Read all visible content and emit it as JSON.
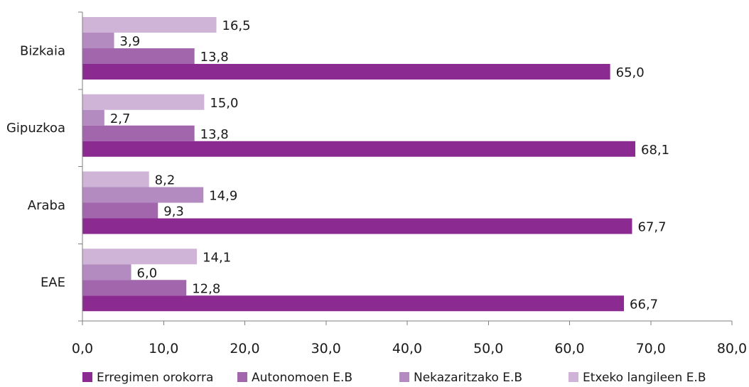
{
  "chart_data": {
    "type": "bar",
    "orientation": "horizontal",
    "categories": [
      "Bizkaia",
      "Gipuzkoa",
      "Araba",
      "EAE"
    ],
    "series": [
      {
        "name": "Erregimen orokorra",
        "values": [
          65.0,
          68.1,
          67.7,
          66.7
        ],
        "labels": [
          "65,0",
          "68,1",
          "67,7",
          "66,7"
        ],
        "color": "#8B2B91"
      },
      {
        "name": "Autonomoen E.B",
        "values": [
          13.8,
          13.8,
          9.3,
          12.8
        ],
        "labels": [
          "13,8",
          "13,8",
          "9,3",
          "12,8"
        ],
        "color": "#A166AC"
      },
      {
        "name": "Nekazaritzako E.B",
        "values": [
          3.9,
          2.7,
          14.9,
          6.0
        ],
        "labels": [
          "3,9",
          "2,7",
          "14,9",
          "6,0"
        ],
        "color": "#B48BC0"
      },
      {
        "name": "Etxeko langileen E.B",
        "values": [
          16.5,
          15.0,
          8.2,
          14.1
        ],
        "labels": [
          "16,5",
          "15,0",
          "8,2",
          "14,1"
        ],
        "color": "#CFB4D8"
      }
    ],
    "x_ticks": [
      0,
      10,
      20,
      30,
      40,
      50,
      60,
      70,
      80
    ],
    "x_tick_labels": [
      "0,0",
      "10,0",
      "20,0",
      "30,0",
      "40,0",
      "50,0",
      "60,0",
      "70,0",
      "80,0"
    ],
    "xlim": [
      0,
      80
    ],
    "title": "",
    "xlabel": "",
    "ylabel": "",
    "grid": false,
    "legend_position": "bottom"
  }
}
